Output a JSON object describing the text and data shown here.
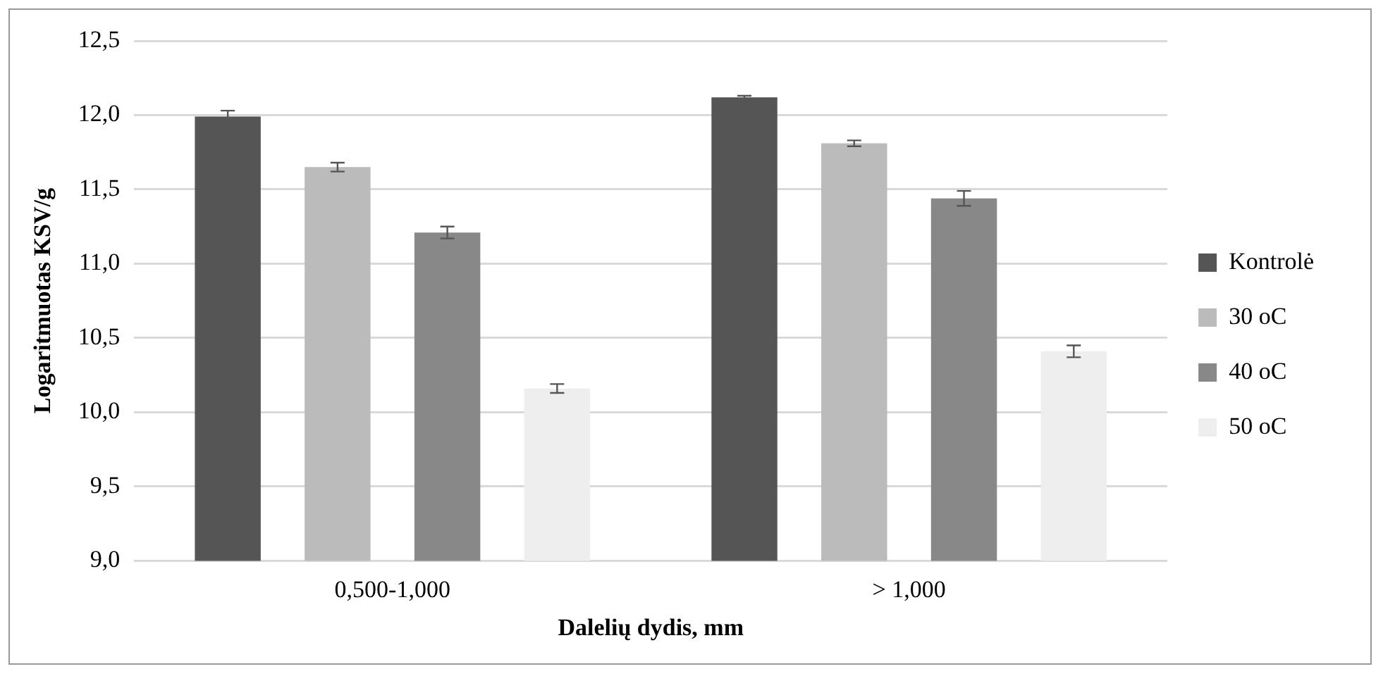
{
  "chart_data": {
    "type": "bar",
    "xlabel": "Dalelių dydis, mm",
    "ylabel": "Logaritmuotas KSV/g",
    "categories": [
      "0,500-1,000",
      "> 1,000"
    ],
    "series": [
      {
        "name": "Kontrolė",
        "color": "#555555",
        "values": [
          11.99,
          12.12
        ],
        "errors": [
          0.04,
          0.01
        ]
      },
      {
        "name": "30 oC",
        "color": "#bbbbbb",
        "values": [
          11.65,
          11.81
        ],
        "errors": [
          0.03,
          0.02
        ]
      },
      {
        "name": "40 oC",
        "color": "#888888",
        "values": [
          11.21,
          11.44
        ],
        "errors": [
          0.04,
          0.05
        ]
      },
      {
        "name": "50 oC",
        "color": "#eeeeee",
        "values": [
          10.16,
          10.41
        ],
        "errors": [
          0.03,
          0.04
        ]
      }
    ],
    "ylim": [
      9,
      12.5
    ],
    "yticks": [
      {
        "value": 9,
        "label": "9,0"
      },
      {
        "value": 9.5,
        "label": "9,5"
      },
      {
        "value": 10,
        "label": "10,0"
      },
      {
        "value": 10.5,
        "label": "10,5"
      },
      {
        "value": 11,
        "label": "11,0"
      },
      {
        "value": 11.5,
        "label": "11,5"
      },
      {
        "value": 12,
        "label": "12,0"
      },
      {
        "value": 12.5,
        "label": "12,5"
      }
    ],
    "grid": "y",
    "legend": "right"
  }
}
